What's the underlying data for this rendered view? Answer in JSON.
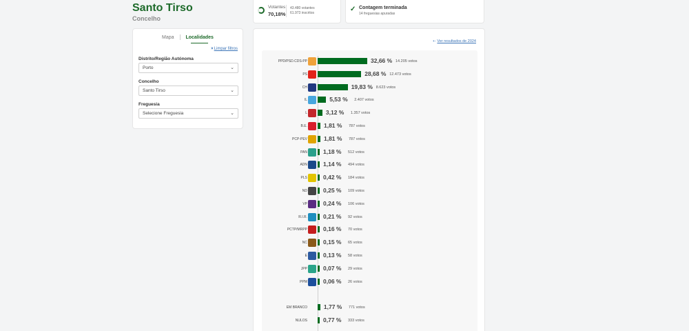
{
  "header": {
    "title": "Santo Tirso",
    "subtitle": "Concelho"
  },
  "filters": {
    "tabs": [
      {
        "label": "Mapa"
      },
      {
        "label": "Localidades"
      }
    ],
    "clear_icon": "×",
    "clear_label": "Limpar filtros",
    "district_label": "Distrito/Região Autónoma",
    "district_value": "Porto",
    "municipality_label": "Concelho",
    "municipality_value": "Santo Tirso",
    "parish_label": "Freguesia",
    "parish_value": "Selecione Freguesia"
  },
  "stats": {
    "voters_label": "Votantes",
    "voters_pct": "70,18%",
    "voters_count": "43.480 votantes",
    "registered_count": "61.973 inscritos",
    "count_title": "Contagem terminada",
    "count_sub": "14 freguesias apuradas"
  },
  "results": {
    "prev_label": "Ver resultados de 2024",
    "accent": "#006b1f",
    "parties": [
      {
        "name": "PPD/PSD.CDS-PP",
        "pct": "32,66 %",
        "votes": "14.205 votos",
        "value": 32.66,
        "color": "#f0a23a",
        "icon": "psd-arrow-icon"
      },
      {
        "name": "PS",
        "pct": "28,68 %",
        "votes": "12.473 votos",
        "value": 28.68,
        "color": "#e2231a",
        "icon": "ps-fist-icon"
      },
      {
        "name": "CH",
        "pct": "19,83 %",
        "votes": "8.623 votos",
        "value": 19.83,
        "color": "#203880",
        "icon": "chega-icon"
      },
      {
        "name": "IL",
        "pct": "5,53 %",
        "votes": "2.407 votos",
        "value": 5.53,
        "color": "#47a6de",
        "icon": "il-icon"
      },
      {
        "name": "L",
        "pct": "3,12 %",
        "votes": "1.357 votos",
        "value": 3.12,
        "color": "#c3272b",
        "icon": "livre-flower-icon"
      },
      {
        "name": "B.E.",
        "pct": "1,81 %",
        "votes": "787 votos",
        "value": 1.81,
        "color": "#d81e2c",
        "icon": "be-star-icon"
      },
      {
        "name": "PCP-PEV",
        "pct": "1,81 %",
        "votes": "787 votos",
        "value": 1.81,
        "color": "#e0a400",
        "icon": "cdu-icon"
      },
      {
        "name": "PAN",
        "pct": "1,18 %",
        "votes": "512 votos",
        "value": 1.18,
        "color": "#2aa08a",
        "icon": "pan-icon"
      },
      {
        "name": "ADN",
        "pct": "1,14 %",
        "votes": "494 votos",
        "value": 1.14,
        "color": "#1b4a8a",
        "icon": "adn-icon"
      },
      {
        "name": "PLS",
        "pct": "0,42 %",
        "votes": "184 votos",
        "value": 0.42,
        "color": "#e2c400",
        "icon": "pls-icon"
      },
      {
        "name": "ND",
        "pct": "0,25 %",
        "votes": "109 votos",
        "value": 0.25,
        "color": "#444444",
        "icon": "nd-icon"
      },
      {
        "name": "VP",
        "pct": "0,24 %",
        "votes": "106 votos",
        "value": 0.24,
        "color": "#5a2d82",
        "icon": "volt-icon"
      },
      {
        "name": "R.I.R.",
        "pct": "0,21 %",
        "votes": "92 votos",
        "value": 0.21,
        "color": "#1f8fbf",
        "icon": "rir-icon"
      },
      {
        "name": "PCTP/MRPP",
        "pct": "0,16 %",
        "votes": "70 votos",
        "value": 0.16,
        "color": "#c41e1e",
        "icon": "mrpp-icon"
      },
      {
        "name": "NC",
        "pct": "0,15 %",
        "votes": "65 votos",
        "value": 0.15,
        "color": "#8a5a1a",
        "icon": "nc-icon"
      },
      {
        "name": "E",
        "pct": "0,13 %",
        "votes": "58 votos",
        "value": 0.13,
        "color": "#2c5aa0",
        "icon": "ergue-te-icon"
      },
      {
        "name": "JPP",
        "pct": "0,07 %",
        "votes": "29 votos",
        "value": 0.07,
        "color": "#2aa58a",
        "icon": "jpp-icon"
      },
      {
        "name": "PPM",
        "pct": "0,06 %",
        "votes": "26 votos",
        "value": 0.06,
        "color": "#1d4f9c",
        "icon": "ppm-icon"
      }
    ],
    "others": [
      {
        "name": "EM BRANCO",
        "pct": "1,77 %",
        "votes": "771 votos",
        "value": 1.77
      },
      {
        "name": "NULOS",
        "pct": "0,77 %",
        "votes": "333 votos",
        "value": 0.77
      }
    ]
  }
}
